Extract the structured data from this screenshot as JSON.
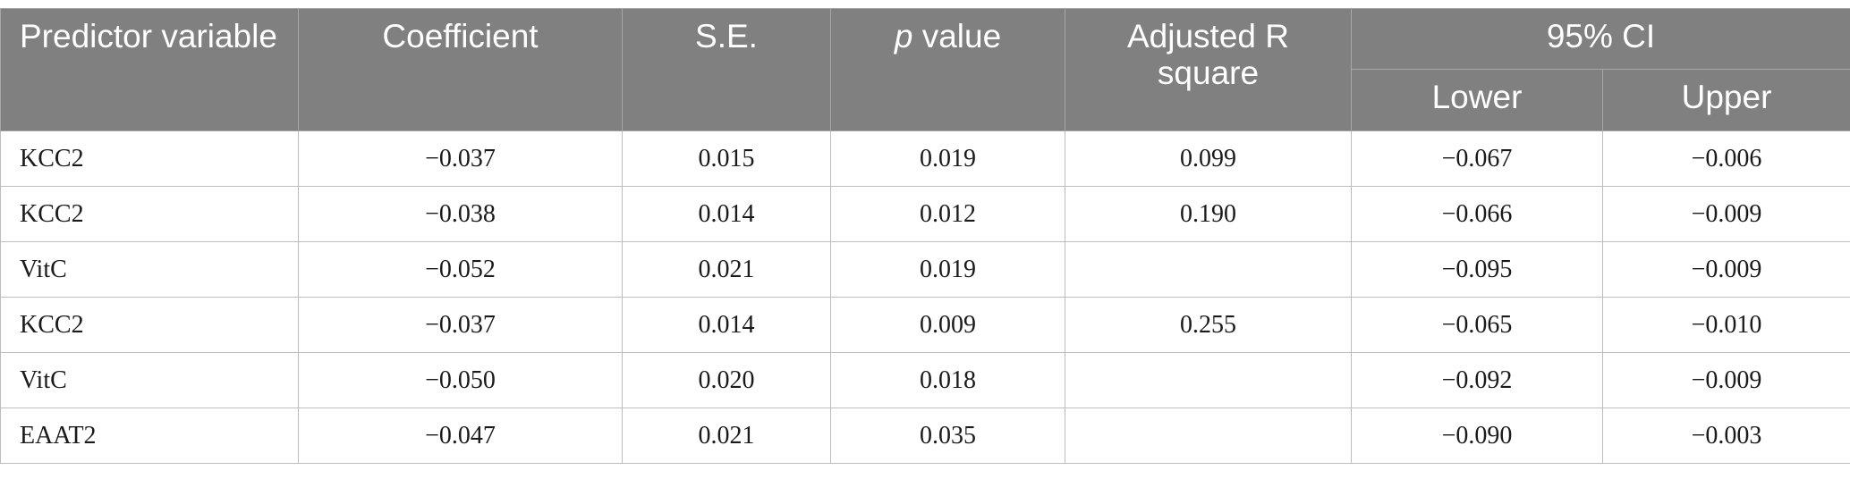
{
  "header": {
    "predictor": "Predictor variable",
    "coefficient": "Coefficient",
    "se": "S.E.",
    "p_italic": "p",
    "p_rest": " value",
    "adj_r2": "Adjusted R square",
    "ci": "95% CI",
    "lower": "Lower",
    "upper": "Upper"
  },
  "rows": [
    {
      "predictor": "KCC2",
      "coefficient": "−0.037",
      "se": "0.015",
      "p": "0.019",
      "adj_r2": "0.099",
      "lower": "−0.067",
      "upper": "−0.006"
    },
    {
      "predictor": "KCC2",
      "coefficient": "−0.038",
      "se": "0.014",
      "p": "0.012",
      "adj_r2": "0.190",
      "lower": "−0.066",
      "upper": "−0.009"
    },
    {
      "predictor": "VitC",
      "coefficient": "−0.052",
      "se": "0.021",
      "p": "0.019",
      "adj_r2": "",
      "lower": "−0.095",
      "upper": "−0.009"
    },
    {
      "predictor": "KCC2",
      "coefficient": "−0.037",
      "se": "0.014",
      "p": "0.009",
      "adj_r2": "0.255",
      "lower": "−0.065",
      "upper": "−0.010"
    },
    {
      "predictor": "VitC",
      "coefficient": "−0.050",
      "se": "0.020",
      "p": "0.018",
      "adj_r2": "",
      "lower": "−0.092",
      "upper": "−0.009"
    },
    {
      "predictor": "EAAT2",
      "coefficient": "−0.047",
      "se": "0.021",
      "p": "0.035",
      "adj_r2": "",
      "lower": "−0.090",
      "upper": "−0.003"
    }
  ]
}
